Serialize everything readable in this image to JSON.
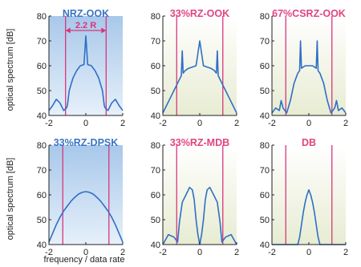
{
  "colors": {
    "trace": "#2f6fc6",
    "band_line": "#d9357a",
    "title_blue": "#3a74c4",
    "title_pink": "#e0457f",
    "bg_blue_top": "#a8c8ea",
    "bg_blue_bottom": "#e6f0fa",
    "bg_green_top": "#ffffff",
    "bg_green_bottom": "#e7ecd2",
    "axis": "#222222"
  },
  "axis_labels": {
    "ylabel": "optical spectrum [dB]",
    "xlabel": "frequency / data rate"
  },
  "chart_data": [
    {
      "type": "line",
      "title": "NRZ-OOK",
      "annotation": "2.2 R",
      "xlim": [
        -2,
        2
      ],
      "ylim": [
        40,
        80
      ],
      "xticks": [
        "-2",
        "0",
        "2"
      ],
      "yticks": [
        "40",
        "50",
        "60",
        "70",
        "80"
      ],
      "band_edges": [
        -1.1,
        1.1
      ],
      "background": "blue",
      "x": [
        -2.0,
        -1.8,
        -1.6,
        -1.4,
        -1.2,
        -1.05,
        -1.0,
        -0.9,
        -0.7,
        -0.5,
        -0.3,
        -0.1,
        0.0,
        0.1,
        0.3,
        0.5,
        0.7,
        0.9,
        1.0,
        1.05,
        1.2,
        1.4,
        1.6,
        1.8,
        2.0
      ],
      "y": [
        42,
        44,
        46.5,
        45,
        42,
        43,
        44,
        50,
        55,
        58,
        60,
        60.5,
        72,
        60.5,
        60,
        58,
        55,
        50,
        44,
        43,
        42,
        45,
        46.5,
        44,
        42
      ]
    },
    {
      "type": "line",
      "title": "33%RZ-OOK",
      "annotation": "",
      "xlim": [
        -2,
        2
      ],
      "ylim": [
        40,
        80
      ],
      "xticks": [
        "-2",
        "0",
        "2"
      ],
      "yticks": [
        "40",
        "50",
        "60",
        "70",
        "80"
      ],
      "band_edges": [
        -1.25,
        1.25
      ],
      "background": "green",
      "x": [
        -2.0,
        -1.8,
        -1.6,
        -1.4,
        -1.2,
        -1.0,
        -0.95,
        -0.9,
        -0.8,
        -0.6,
        -0.4,
        -0.2,
        0.0,
        0.2,
        0.4,
        0.6,
        0.8,
        0.9,
        0.95,
        1.0,
        1.2,
        1.4,
        1.6,
        1.8,
        2.0
      ],
      "y": [
        41,
        44,
        47,
        50,
        53,
        56,
        66,
        57,
        58,
        59,
        59.5,
        60,
        70,
        60,
        59.5,
        59,
        58,
        57,
        66,
        56,
        53,
        50,
        47,
        44,
        41
      ]
    },
    {
      "type": "line",
      "title": "67%CSRZ-OOK",
      "annotation": "",
      "xlim": [
        -2,
        2
      ],
      "ylim": [
        40,
        80
      ],
      "xticks": [
        "-2",
        "0",
        "2"
      ],
      "yticks": [
        "40",
        "50",
        "60",
        "70",
        "80"
      ],
      "band_edges": [
        -1.25,
        1.25
      ],
      "background": "green",
      "x": [
        -2.0,
        -1.8,
        -1.6,
        -1.5,
        -1.4,
        -1.2,
        -1.0,
        -0.8,
        -0.6,
        -0.5,
        -0.45,
        -0.4,
        -0.2,
        0.0,
        0.2,
        0.4,
        0.45,
        0.5,
        0.6,
        0.8,
        1.0,
        1.2,
        1.4,
        1.5,
        1.6,
        1.8,
        2.0
      ],
      "y": [
        41,
        43,
        42,
        46,
        43,
        41,
        46,
        53,
        57,
        58,
        70,
        59,
        60,
        60,
        60,
        59,
        70,
        58,
        57,
        53,
        46,
        41,
        43,
        46,
        42,
        43,
        41
      ]
    },
    {
      "type": "line",
      "title": "33%RZ-DPSK",
      "annotation": "",
      "xlim": [
        -2,
        2
      ],
      "ylim": [
        40,
        80
      ],
      "xticks": [
        "-2",
        "0",
        "2"
      ],
      "yticks": [
        "40",
        "50",
        "60",
        "70",
        "80"
      ],
      "band_edges": [
        -1.25,
        1.25
      ],
      "background": "blue",
      "x": [
        -2.0,
        -1.8,
        -1.6,
        -1.4,
        -1.2,
        -1.0,
        -0.8,
        -0.6,
        -0.4,
        -0.2,
        0.0,
        0.2,
        0.4,
        0.6,
        0.8,
        1.0,
        1.2,
        1.4,
        1.6,
        1.8,
        2.0
      ],
      "y": [
        41,
        44.5,
        48,
        51,
        53.5,
        55.5,
        57.5,
        59,
        60.3,
        61,
        61.3,
        61,
        60.3,
        59,
        57.5,
        55.5,
        53.5,
        51,
        48,
        44.5,
        41
      ]
    },
    {
      "type": "line",
      "title": "33%RZ-MDB",
      "annotation": "",
      "xlim": [
        -2,
        2
      ],
      "ylim": [
        40,
        80
      ],
      "xticks": [
        "-2",
        "0",
        "2"
      ],
      "yticks": [
        "40",
        "50",
        "60",
        "70",
        "80"
      ],
      "band_edges": [
        -1.25,
        1.25
      ],
      "background": "green",
      "x": [
        -2.0,
        -1.7,
        -1.4,
        -1.2,
        -1.1,
        -0.95,
        -0.75,
        -0.55,
        -0.4,
        -0.3,
        -0.2,
        -0.1,
        0.0,
        0.1,
        0.2,
        0.3,
        0.4,
        0.55,
        0.75,
        0.95,
        1.1,
        1.2,
        1.4,
        1.7,
        2.0
      ],
      "y": [
        40,
        44,
        43,
        41,
        49,
        57,
        60,
        63,
        62,
        58,
        50,
        44,
        40,
        44,
        50,
        58,
        62,
        63,
        60,
        57,
        49,
        41,
        43,
        44,
        40
      ]
    },
    {
      "type": "line",
      "title": "DB",
      "annotation": "",
      "xlim": [
        -2,
        2
      ],
      "ylim": [
        40,
        80
      ],
      "xticks": [
        "-2",
        "0",
        "2"
      ],
      "yticks": [
        "40",
        "50",
        "60",
        "70",
        "80"
      ],
      "band_edges": [
        -1.25,
        1.25
      ],
      "background": "green",
      "x": [
        -2.0,
        -1.6,
        -1.2,
        -0.6,
        -0.5,
        -0.4,
        -0.3,
        -0.2,
        -0.1,
        0.0,
        0.1,
        0.2,
        0.3,
        0.4,
        0.5,
        0.6,
        1.2,
        1.6,
        2.0
      ],
      "y": [
        40,
        40,
        40,
        40,
        43,
        48,
        53,
        57,
        60,
        62,
        60,
        57,
        53,
        48,
        43,
        40,
        40,
        40,
        40
      ]
    }
  ]
}
